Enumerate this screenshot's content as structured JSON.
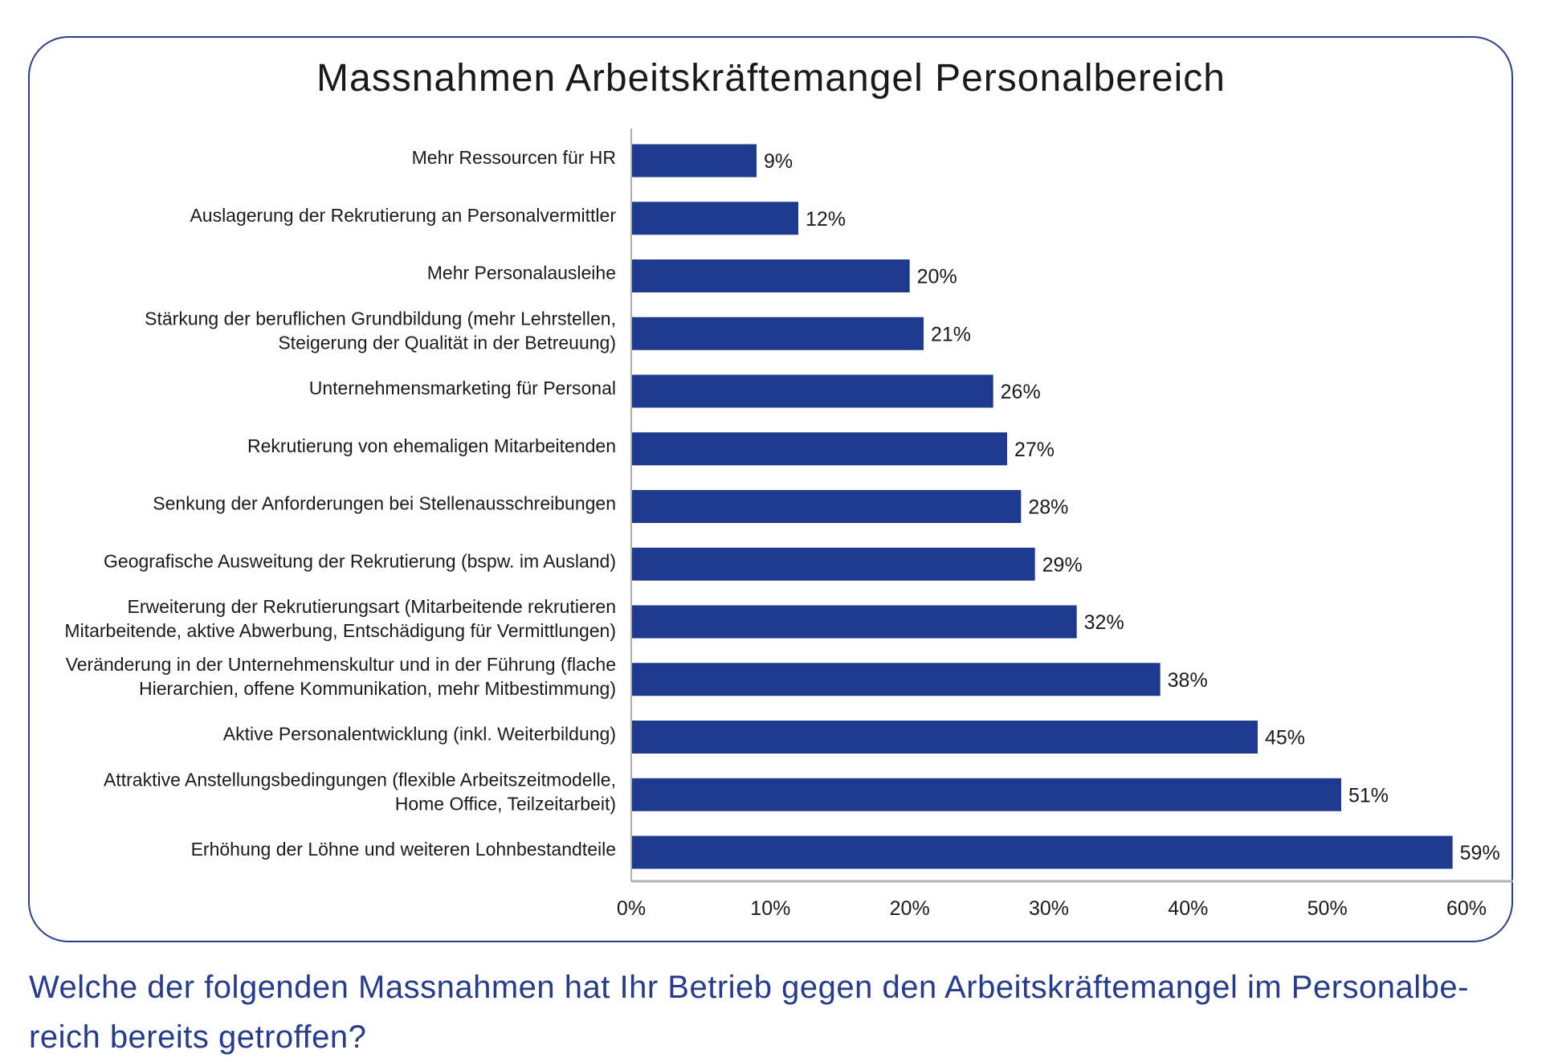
{
  "chart_data": {
    "type": "bar",
    "orientation": "horizontal",
    "title": "Massnahmen Arbeitskräftemangel Personalbereich",
    "xlabel": "",
    "ylabel": "",
    "xlim": [
      0,
      60
    ],
    "xticks": [
      "0%",
      "10%",
      "20%",
      "30%",
      "40%",
      "50%",
      "60%"
    ],
    "grid": false,
    "bar_color": "#1e3a8f",
    "categories": [
      [
        "Mehr Ressourcen für HR"
      ],
      [
        "Auslagerung der Rekrutierung an Personalvermittler"
      ],
      [
        "Mehr Personalausleihe"
      ],
      [
        "Stärkung der beruflichen Grundbildung (mehr Lehrstellen,",
        "Steigerung der Qualität in der Betreuung)"
      ],
      [
        "Unternehmensmarketing für Personal"
      ],
      [
        "Rekrutierung von ehemaligen Mitarbeitenden"
      ],
      [
        "Senkung der Anforderungen bei Stellenausschreibungen"
      ],
      [
        "Geografische Ausweitung der Rekrutierung (bspw. im Ausland)"
      ],
      [
        "Erweiterung der Rekrutierungsart (Mitarbeitende rekrutieren",
        "Mitarbeitende, aktive Abwerbung, Entschädigung für Vermittlungen)"
      ],
      [
        "Veränderung in der Unternehmenskultur und in der Führung (flache",
        "Hierarchien, offene Kommunikation, mehr Mitbestimmung)"
      ],
      [
        "Aktive Personalentwicklung (inkl. Weiterbildung)"
      ],
      [
        "Attraktive Anstellungsbedingungen (flexible Arbeitszeitmodelle,",
        "Home Office, Teilzeitarbeit)"
      ],
      [
        "Erhöhung der Löhne und weiteren Lohnbestandteile"
      ]
    ],
    "values": [
      9,
      12,
      20,
      21,
      26,
      27,
      28,
      29,
      32,
      38,
      45,
      51,
      59
    ],
    "value_labels": [
      "9%",
      "12%",
      "20%",
      "21%",
      "26%",
      "27%",
      "28%",
      "29%",
      "32%",
      "38%",
      "45%",
      "51%",
      "59%"
    ]
  },
  "question": "Welche der folgenden Massnahmen hat Ihr Betrieb gegen den Arbeitskräftemangel im Personalbe- reich bereits getroffen?",
  "question_lines": [
    "Welche der folgenden Massnahmen hat Ihr Betrieb gegen den Arbeitskräftemangel im Personalbe-",
    "reich bereits getroffen?"
  ],
  "colors": {
    "frame": "#2a3f8f",
    "question": "#253c8e",
    "axis": "#b0b0b0"
  }
}
